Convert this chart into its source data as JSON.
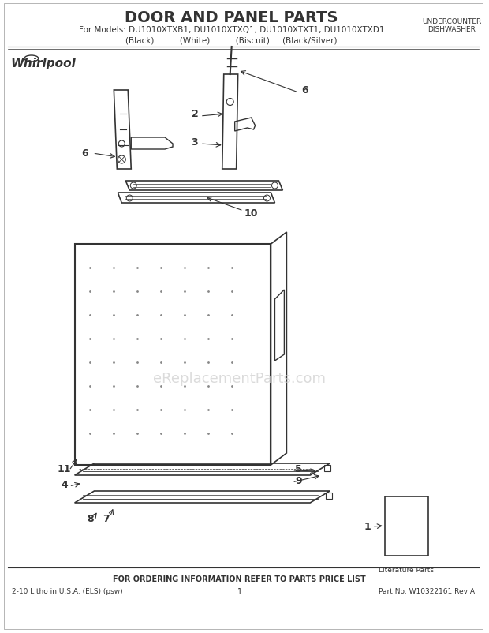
{
  "title": "DOOR AND PANEL PARTS",
  "subtitle": "For Models: DU1010XTXB1, DU1010XTXQ1, DU1010XTXT1, DU1010XTXD1",
  "subtitle2": "(Black)          (White)          (Biscuit)     (Black/Silver)",
  "top_right_line1": "UNDERCOUNTER",
  "top_right_line2": "DISHWASHER",
  "bottom_center": "FOR ORDERING INFORMATION REFER TO PARTS PRICE LIST",
  "bottom_left": "2-10 Litho in U.S.A. (ELS) (psw)",
  "bottom_mid": "1",
  "bottom_right": "Part No. W10322161 Rev A",
  "watermark": "eReplacementParts.com",
  "literature_label": "Literature Parts",
  "bg_color": "#ffffff",
  "line_color": "#333333",
  "part_labels": [
    "1",
    "2",
    "3",
    "4",
    "5",
    "6",
    "6",
    "7",
    "8",
    "9",
    "10",
    "11"
  ],
  "title_fontsize": 14,
  "sub_fontsize": 8,
  "label_fontsize": 9
}
